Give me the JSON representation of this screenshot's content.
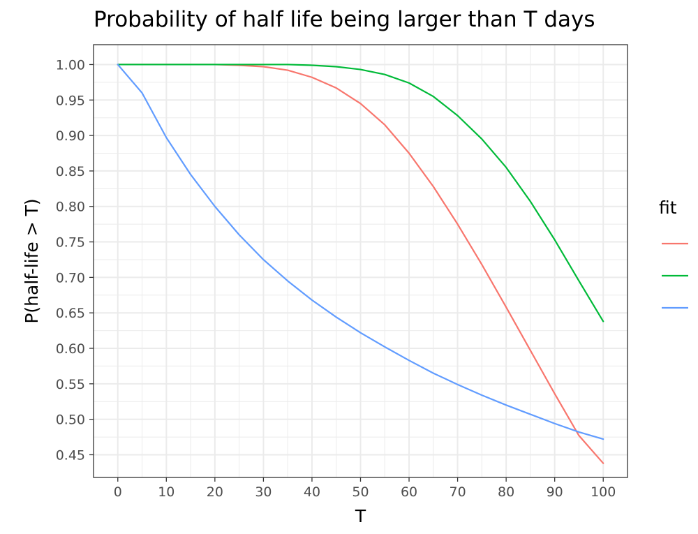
{
  "chart_data": {
    "type": "line",
    "title": "Probability of half life being larger than T days",
    "xlabel": "T",
    "ylabel": "P(half-life > T)",
    "xlim": [
      -5,
      105
    ],
    "ylim": [
      0.418,
      1.028
    ],
    "xticks": [
      "0",
      "10",
      "20",
      "30",
      "40",
      "50",
      "60",
      "70",
      "80",
      "90",
      "100"
    ],
    "xtick_values": [
      0,
      10,
      20,
      30,
      40,
      50,
      60,
      70,
      80,
      90,
      100
    ],
    "yticks": [
      "0.45",
      "0.50",
      "0.55",
      "0.60",
      "0.65",
      "0.70",
      "0.75",
      "0.80",
      "0.85",
      "0.90",
      "0.95",
      "1.00"
    ],
    "ytick_values": [
      0.45,
      0.5,
      0.55,
      0.6,
      0.65,
      0.7,
      0.75,
      0.8,
      0.85,
      0.9,
      0.95,
      1.0
    ],
    "grid": true,
    "legend": {
      "title": "fit",
      "position": "right"
    },
    "x": [
      0,
      5,
      10,
      15,
      20,
      25,
      30,
      35,
      40,
      45,
      50,
      55,
      60,
      65,
      70,
      75,
      80,
      85,
      90,
      95,
      100
    ],
    "series": [
      {
        "name": "",
        "color": "#F8766D",
        "values": [
          1.0,
          1.0,
          1.0,
          1.0,
          1.0,
          0.999,
          0.997,
          0.992,
          0.982,
          0.967,
          0.945,
          0.915,
          0.875,
          0.828,
          0.775,
          0.718,
          0.658,
          0.597,
          0.536,
          0.477,
          0.438
        ]
      },
      {
        "name": "",
        "color": "#00BA38",
        "values": [
          1.0,
          1.0,
          1.0,
          1.0,
          1.0,
          1.0,
          1.0,
          1.0,
          0.999,
          0.997,
          0.993,
          0.986,
          0.974,
          0.955,
          0.928,
          0.895,
          0.855,
          0.807,
          0.753,
          0.695,
          0.638
        ]
      },
      {
        "name": "",
        "color": "#619CFF",
        "values": [
          1.0,
          0.96,
          0.897,
          0.845,
          0.8,
          0.76,
          0.725,
          0.695,
          0.668,
          0.644,
          0.622,
          0.602,
          0.583,
          0.565,
          0.549,
          0.534,
          0.52,
          0.507,
          0.494,
          0.482,
          0.472
        ]
      }
    ]
  }
}
